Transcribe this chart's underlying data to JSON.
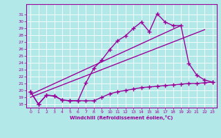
{
  "x_values": [
    0,
    1,
    2,
    3,
    4,
    5,
    6,
    7,
    8,
    9,
    10,
    11,
    12,
    13,
    14,
    15,
    16,
    17,
    18,
    19,
    20,
    21,
    22,
    23
  ],
  "temp_line": [
    19.8,
    18.0,
    19.3,
    19.2,
    18.6,
    18.5,
    18.5,
    21.1,
    23.2,
    24.4,
    25.9,
    27.2,
    27.9,
    29.0,
    29.9,
    28.5,
    31.1,
    29.9,
    29.4,
    29.4,
    23.9,
    22.2,
    21.5,
    21.2
  ],
  "windchill_line": [
    19.8,
    18.0,
    19.3,
    19.2,
    18.6,
    18.5,
    18.5,
    18.5,
    18.5,
    19.0,
    19.5,
    19.8,
    20.0,
    20.2,
    20.4,
    20.5,
    20.6,
    20.7,
    20.8,
    20.9,
    21.0,
    21.0,
    21.1,
    21.2
  ],
  "trend1_x": [
    0,
    19
  ],
  "trend1_y": [
    19.4,
    29.4
  ],
  "trend2_x": [
    0,
    22
  ],
  "trend2_y": [
    19.0,
    28.8
  ],
  "ylim": [
    17.5,
    32.5
  ],
  "xlim": [
    -0.5,
    23.5
  ],
  "yticks": [
    18,
    19,
    20,
    21,
    22,
    23,
    24,
    25,
    26,
    27,
    28,
    29,
    30,
    31
  ],
  "xticks": [
    0,
    1,
    2,
    3,
    4,
    5,
    6,
    7,
    8,
    9,
    10,
    11,
    12,
    13,
    14,
    15,
    16,
    17,
    18,
    19,
    20,
    21,
    22,
    23
  ],
  "xlabel": "Windchill (Refroidissement éolien,°C)",
  "line_color": "#990099",
  "bg_color": "#b3e8e8",
  "grid_color": "#ffffff"
}
